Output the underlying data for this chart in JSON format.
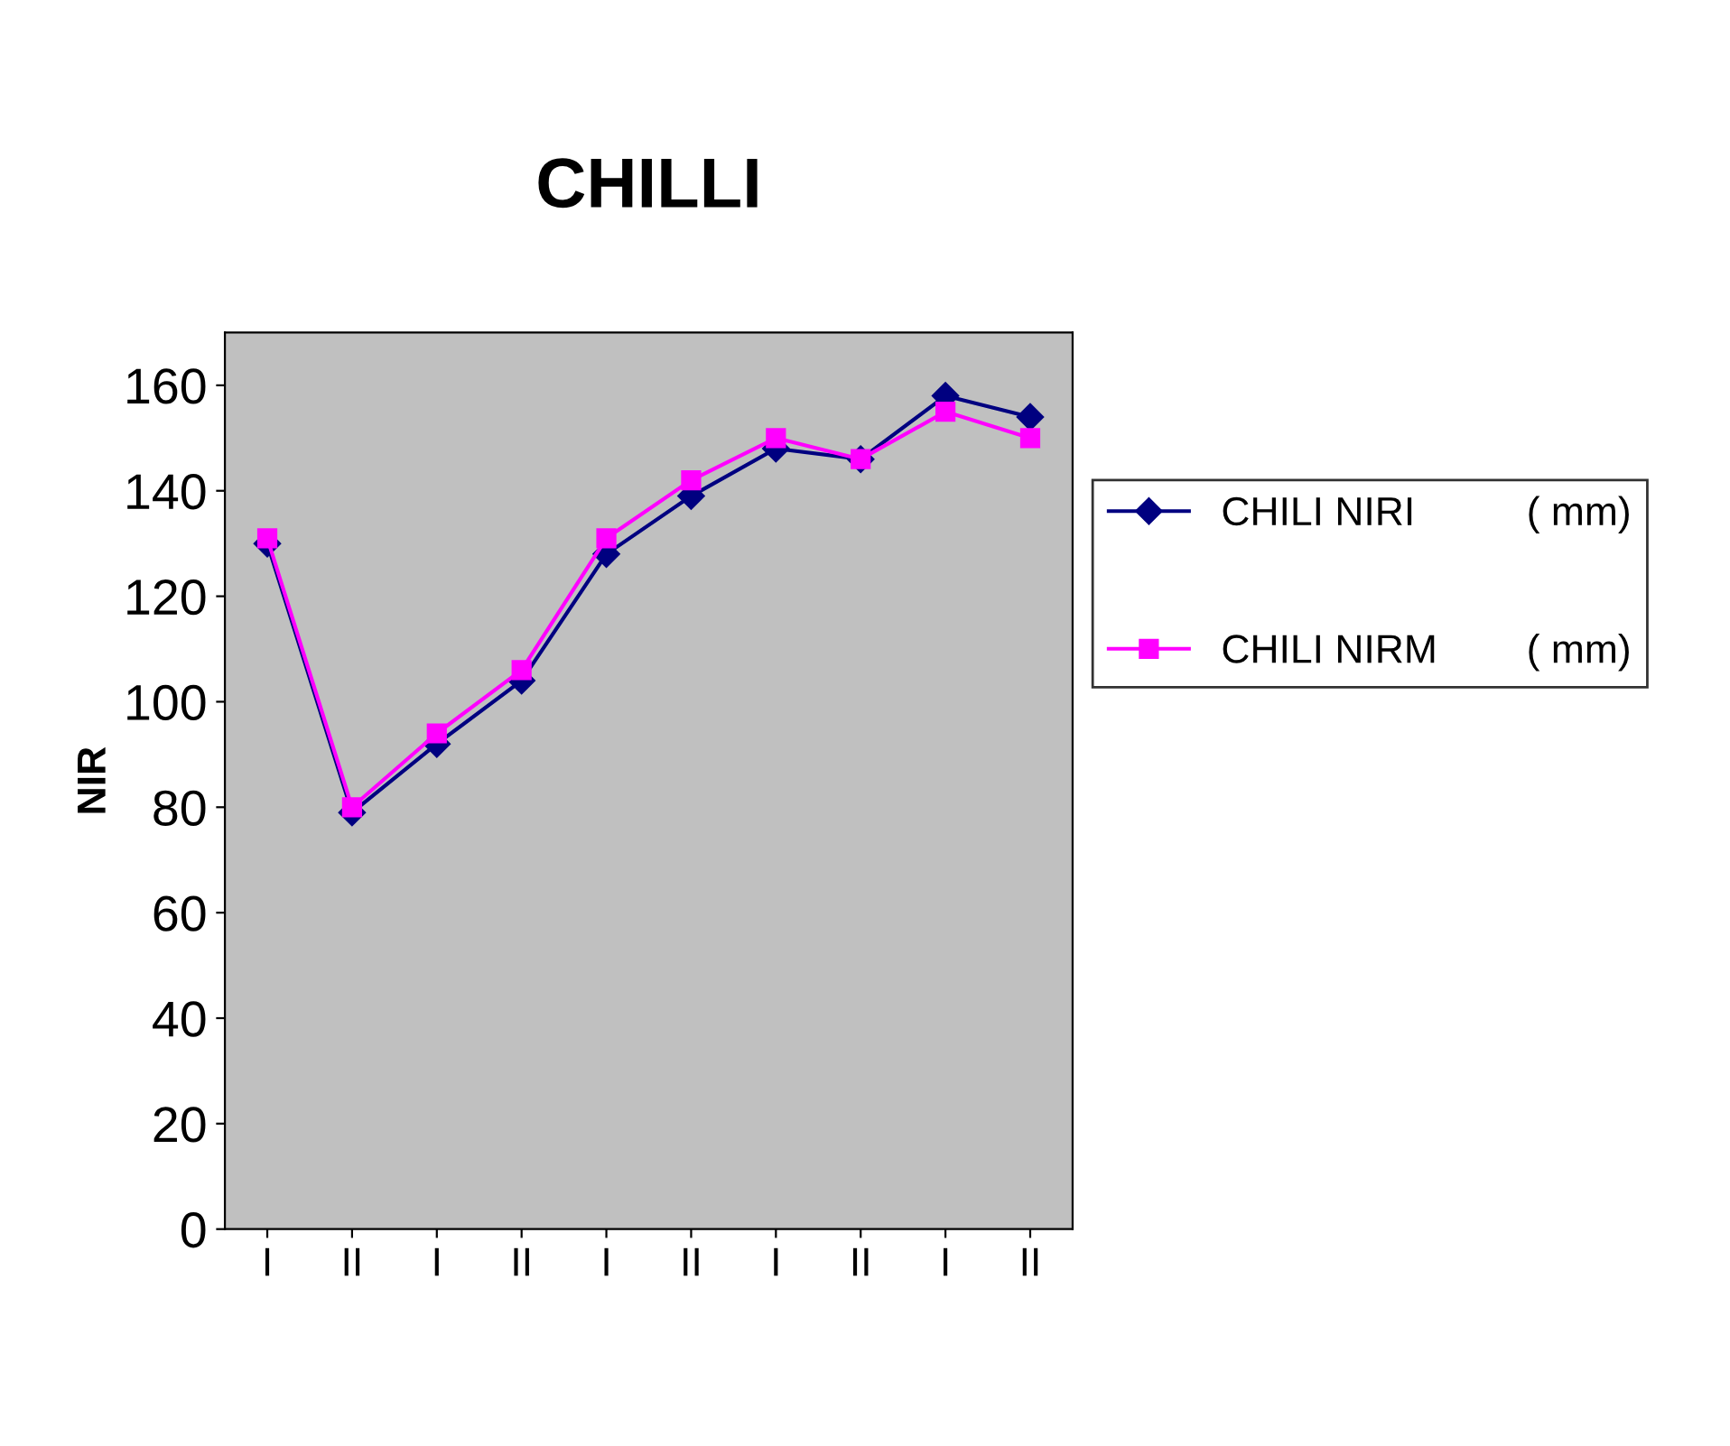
{
  "chart_data": {
    "type": "line",
    "title": "CHILLI",
    "ylabel": "NIR",
    "categories": [
      "I",
      "II",
      "I",
      "II",
      "I",
      "II",
      "I",
      "II",
      "I",
      "II"
    ],
    "series": [
      {
        "name": "CHILI NIRI          ( mm)",
        "color": "#000080",
        "marker": "diamond",
        "values": [
          130,
          79,
          92,
          104,
          128,
          139,
          148,
          146,
          158,
          154
        ]
      },
      {
        "name": "CHILI NIRM        ( mm)",
        "color": "#ff00ff",
        "marker": "square",
        "values": [
          131,
          80,
          94,
          106,
          131,
          142,
          150,
          146,
          155,
          150
        ]
      }
    ],
    "ylim": [
      0,
      170
    ],
    "yticks": [
      0,
      20,
      40,
      60,
      80,
      100,
      120,
      140,
      160
    ],
    "grid": false,
    "legend": "right",
    "line_style": "solid"
  }
}
